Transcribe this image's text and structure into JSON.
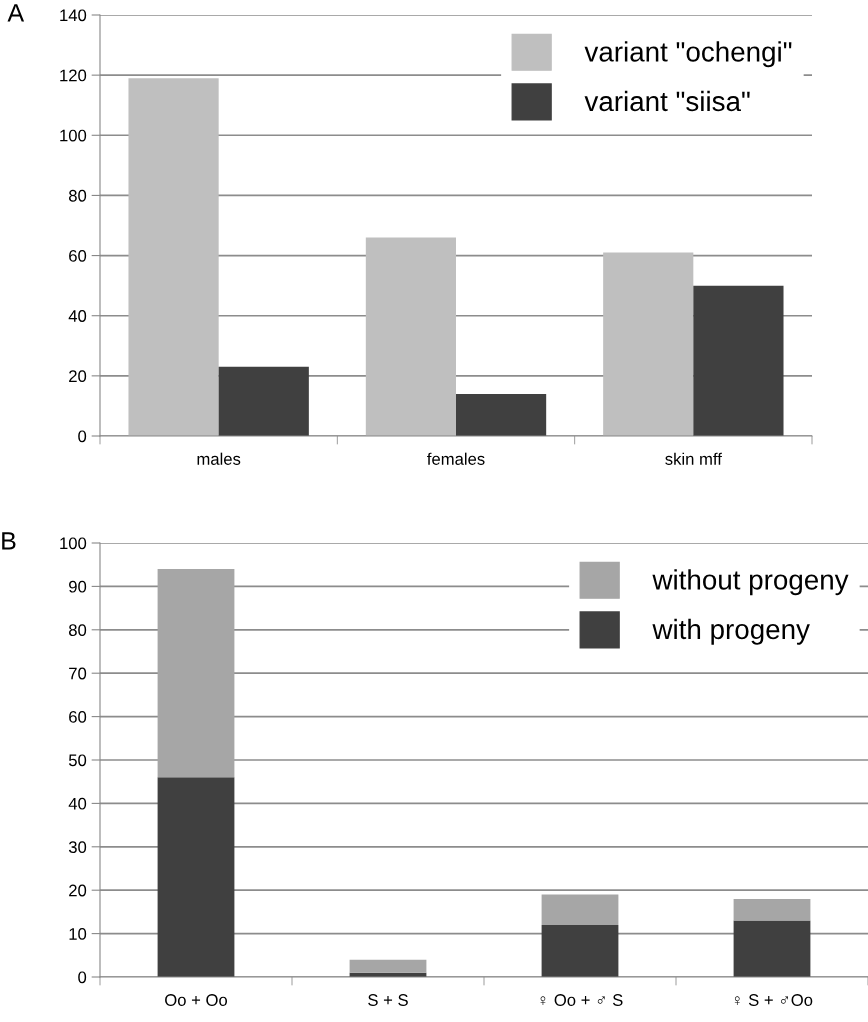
{
  "chart_data": [
    {
      "type": "bar",
      "title": "A",
      "categories": [
        "males",
        "females",
        "skin mff"
      ],
      "series": [
        {
          "name": "variant \"ochengi\"",
          "color": "#bfbfbf",
          "values": [
            119,
            66,
            61
          ]
        },
        {
          "name": "variant \"siisa\"",
          "color": "#404040",
          "values": [
            23,
            14,
            50
          ]
        }
      ],
      "ylim": [
        0,
        140
      ],
      "yticks": [
        0,
        20,
        40,
        60,
        80,
        100,
        120,
        140
      ],
      "grid": "y",
      "legend": "top right"
    },
    {
      "type": "bar",
      "title": "B",
      "stacked": true,
      "categories": [
        "Oo + Oo",
        "S + S",
        "♀ Oo + ♂ S",
        "♀ S + ♂Oo"
      ],
      "series": [
        {
          "name": "with progeny",
          "color": "#404040",
          "values": [
            46,
            1,
            12,
            13
          ]
        },
        {
          "name": "without progeny",
          "color": "#a6a6a6",
          "values": [
            48,
            3,
            7,
            5
          ]
        }
      ],
      "ylim": [
        0,
        100
      ],
      "yticks": [
        0,
        10,
        20,
        30,
        40,
        50,
        60,
        70,
        80,
        90,
        100
      ],
      "grid": "y",
      "legend": "top right"
    }
  ]
}
